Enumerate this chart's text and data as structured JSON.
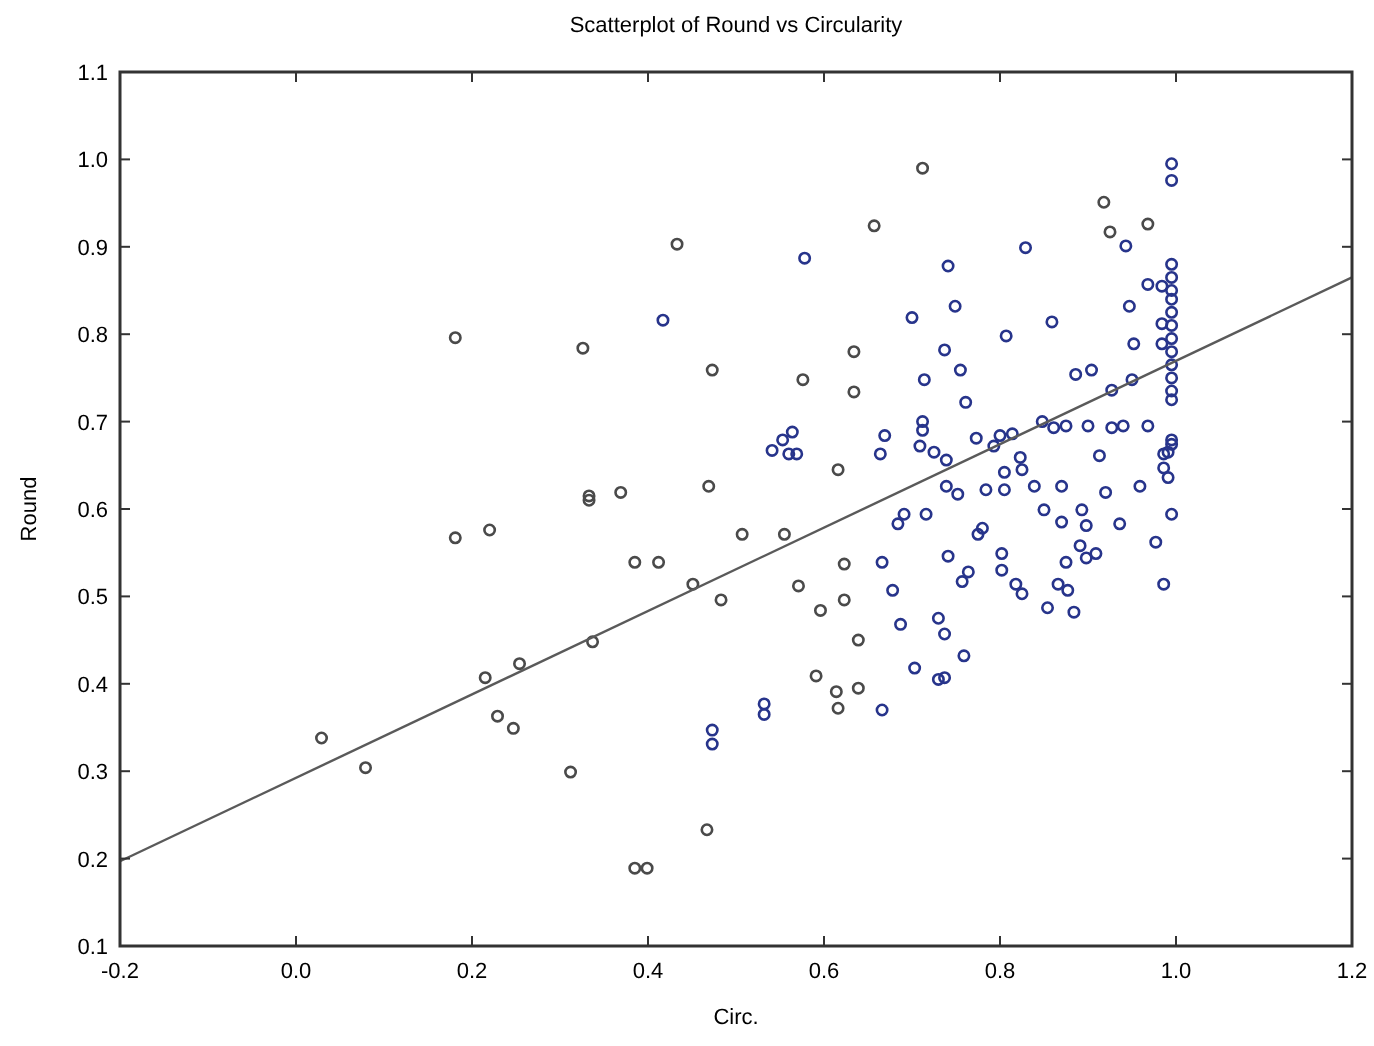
{
  "chart_data": {
    "type": "scatter",
    "title": "Scatterplot of Round vs Circularity",
    "xlabel": "Circ.",
    "ylabel": "Round",
    "xlim": [
      -0.2,
      1.2
    ],
    "ylim": [
      0.1,
      1.1
    ],
    "xticks": [
      -0.2,
      {
        "value": 0,
        "label": "0.0"
      },
      0.2,
      0.4,
      0.6,
      0.8,
      {
        "value": 1,
        "label": "1.0"
      },
      1.2
    ],
    "yticks": [
      0.1,
      0.2,
      0.3,
      0.4,
      0.5,
      0.6,
      0.7,
      0.8,
      0.9,
      {
        "value": 1,
        "label": "1.0"
      },
      1.1
    ],
    "grid": false,
    "series": [
      {
        "color": "#4a4a4a",
        "marker": "circle",
        "x": [
          0.029,
          0.079,
          0.181,
          0.181,
          0.215,
          0.22,
          0.229,
          0.247,
          0.254,
          0.312,
          0.326,
          0.333,
          0.333,
          0.337,
          0.369,
          0.385,
          0.385,
          0.399,
          0.412,
          0.433,
          0.451,
          0.467,
          0.469,
          0.473,
          0.483,
          0.507,
          0.555,
          0.571,
          0.576,
          0.591,
          0.596,
          0.614,
          0.616,
          0.616,
          0.623,
          0.623,
          0.634,
          0.634,
          0.639,
          0.639,
          0.657,
          0.712,
          0.918,
          0.925,
          0.968
        ],
        "values": [
          0.338,
          0.304,
          0.796,
          0.567,
          0.407,
          0.576,
          0.363,
          0.349,
          0.423,
          0.299,
          0.784,
          0.615,
          0.61,
          0.448,
          0.619,
          0.539,
          0.189,
          0.189,
          0.539,
          0.903,
          0.514,
          0.233,
          0.626,
          0.759,
          0.496,
          0.571,
          0.571,
          0.512,
          0.748,
          0.409,
          0.484,
          0.391,
          0.372,
          0.645,
          0.537,
          0.496,
          0.78,
          0.734,
          0.45,
          0.395,
          0.924,
          0.99,
          0.951,
          0.917,
          0.926
        ]
      },
      {
        "color": "#27348b",
        "marker": "circle",
        "x": [
          0.417,
          0.473,
          0.473,
          0.532,
          0.532,
          0.541,
          0.553,
          0.564,
          0.56,
          0.569,
          0.578,
          0.664,
          0.666,
          0.666,
          0.669,
          0.678,
          0.684,
          0.687,
          0.691,
          0.7,
          0.703,
          0.709,
          0.712,
          0.712,
          0.714,
          0.716,
          0.725,
          0.73,
          0.73,
          0.737,
          0.737,
          0.737,
          0.739,
          0.739,
          0.741,
          0.741,
          0.749,
          0.752,
          0.755,
          0.757,
          0.759,
          0.761,
          0.764,
          0.773,
          0.775,
          0.78,
          0.784,
          0.793,
          0.8,
          0.802,
          0.802,
          0.805,
          0.805,
          0.807,
          0.814,
          0.818,
          0.823,
          0.825,
          0.825,
          0.829,
          0.839,
          0.848,
          0.85,
          0.854,
          0.859,
          0.861,
          0.866,
          0.87,
          0.87,
          0.875,
          0.875,
          0.877,
          0.884,
          0.886,
          0.891,
          0.893,
          0.898,
          0.898,
          0.9,
          0.904,
          0.909,
          0.913,
          0.92,
          0.927,
          0.927,
          0.936,
          0.94,
          0.943,
          0.947,
          0.95,
          0.952,
          0.959,
          0.968,
          0.968,
          0.977,
          0.984,
          0.984,
          0.984,
          0.986,
          0.986,
          0.986,
          0.991,
          0.991,
          0.995,
          0.995,
          0.995,
          0.995,
          0.995,
          0.995,
          0.995,
          0.995,
          0.995,
          0.995,
          0.995,
          0.995,
          0.995,
          0.995,
          0.995,
          0.995,
          0.995
        ],
        "values": [
          0.816,
          0.347,
          0.331,
          0.377,
          0.365,
          0.667,
          0.679,
          0.688,
          0.663,
          0.663,
          0.887,
          0.663,
          0.539,
          0.37,
          0.684,
          0.507,
          0.583,
          0.468,
          0.594,
          0.819,
          0.418,
          0.672,
          0.7,
          0.69,
          0.748,
          0.594,
          0.665,
          0.475,
          0.405,
          0.782,
          0.457,
          0.407,
          0.656,
          0.626,
          0.878,
          0.546,
          0.832,
          0.617,
          0.759,
          0.517,
          0.432,
          0.722,
          0.528,
          0.681,
          0.571,
          0.578,
          0.622,
          0.672,
          0.684,
          0.549,
          0.53,
          0.642,
          0.622,
          0.798,
          0.686,
          0.514,
          0.659,
          0.645,
          0.503,
          0.899,
          0.626,
          0.7,
          0.599,
          0.487,
          0.814,
          0.693,
          0.514,
          0.585,
          0.626,
          0.695,
          0.539,
          0.507,
          0.482,
          0.754,
          0.558,
          0.599,
          0.581,
          0.544,
          0.695,
          0.759,
          0.549,
          0.661,
          0.619,
          0.736,
          0.693,
          0.583,
          0.695,
          0.901,
          0.832,
          0.748,
          0.789,
          0.626,
          0.857,
          0.695,
          0.562,
          0.855,
          0.812,
          0.789,
          0.663,
          0.647,
          0.514,
          0.636,
          0.665,
          0.995,
          0.976,
          0.88,
          0.865,
          0.85,
          0.84,
          0.825,
          0.81,
          0.795,
          0.78,
          0.765,
          0.75,
          0.735,
          0.725,
          0.674,
          0.679,
          0.594
        ]
      },
      {
        "type": "line",
        "marker": "none",
        "color": "#5a5a5a",
        "x": [
          -0.2,
          1.2
        ],
        "values": [
          0.197,
          0.865
        ]
      }
    ]
  }
}
